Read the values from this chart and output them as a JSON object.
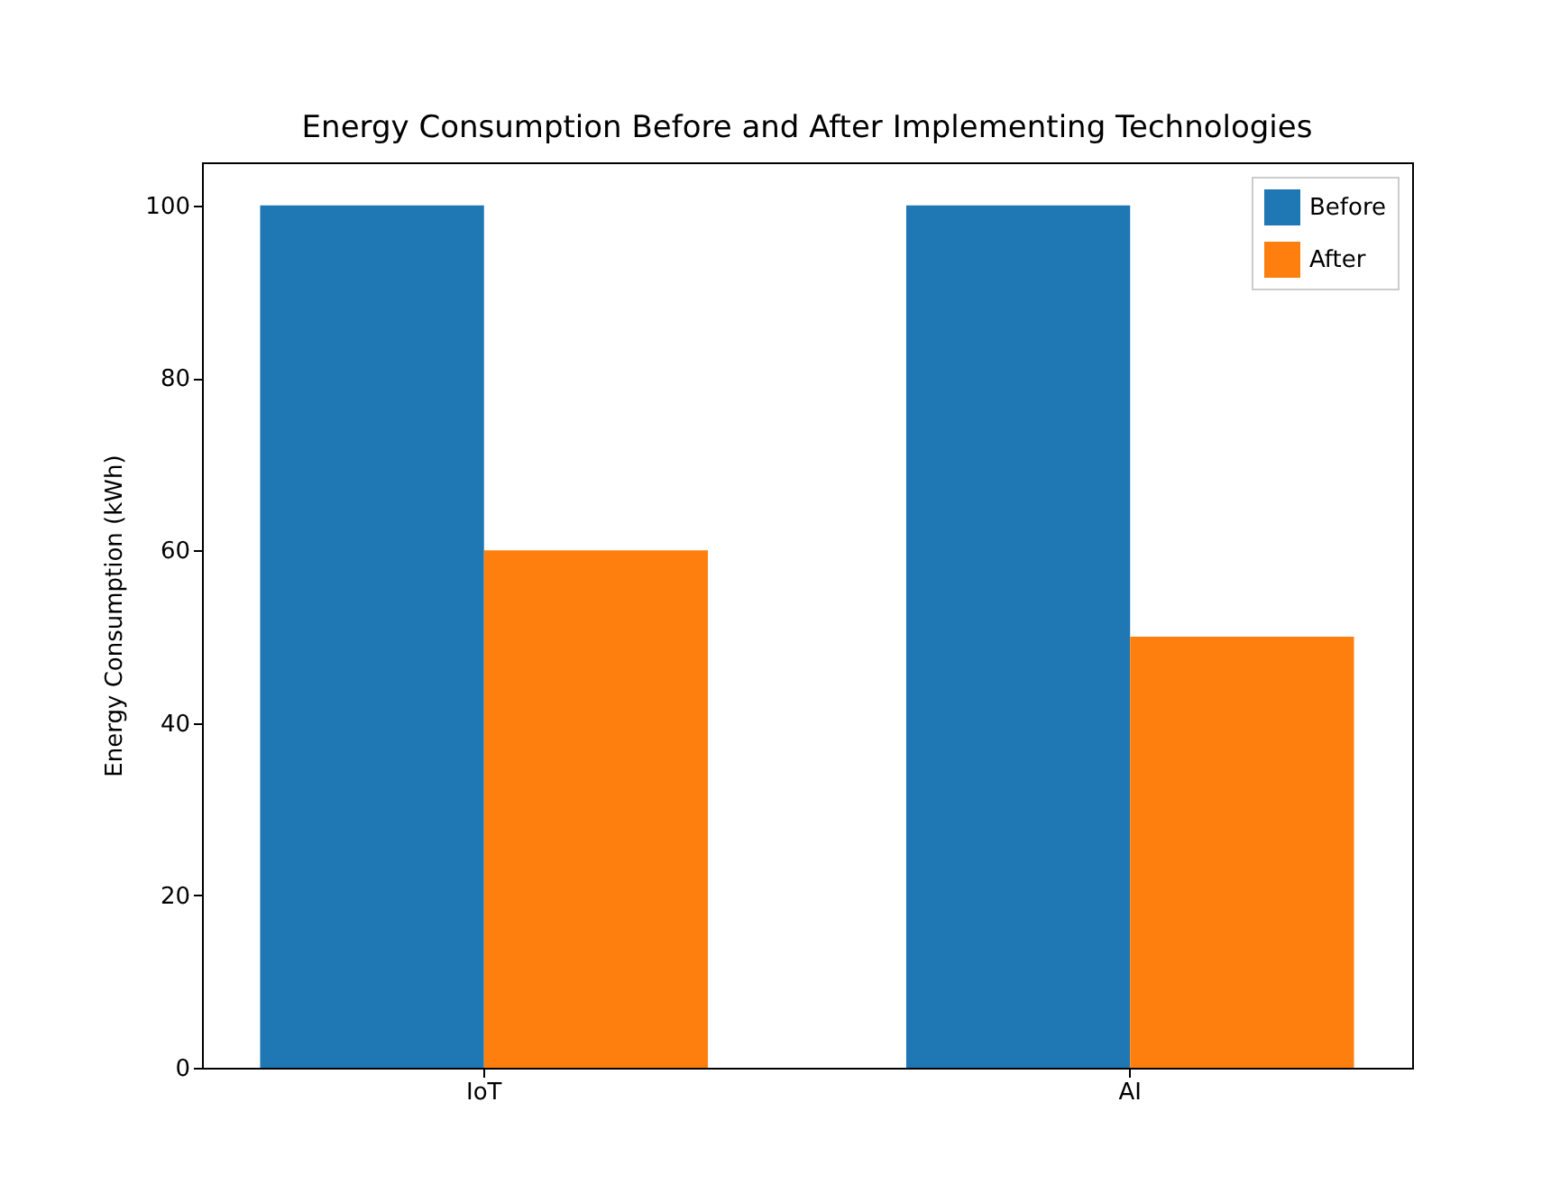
{
  "chart_data": {
    "type": "bar",
    "title": "Energy Consumption Before and After Implementing Technologies",
    "ylabel": "Energy Consumption (kWh)",
    "categories": [
      "IoT",
      "AI"
    ],
    "series": [
      {
        "name": "Before",
        "color": "#1f77b4",
        "values": [
          100,
          100
        ]
      },
      {
        "name": "After",
        "color": "#ff7f0e",
        "values": [
          60,
          50
        ]
      }
    ],
    "ylim": [
      0,
      105
    ],
    "yticks": [
      0,
      20,
      40,
      60,
      80,
      100
    ],
    "legend": "top right"
  }
}
